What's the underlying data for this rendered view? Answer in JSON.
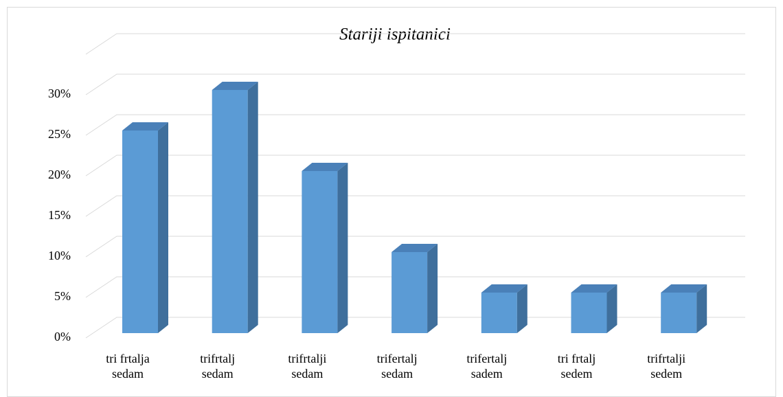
{
  "chart_data": {
    "type": "bar3d",
    "title": "Stariji ispitanici",
    "categories": [
      "tri frtalja\nsedam",
      "trifrtalj\nsedam",
      "trifrtalji\nsedam",
      "trifertalj\nsedam",
      "trifertalj\nsadem",
      "tri frtalj\nsedem",
      "trifrtalji\nsedem"
    ],
    "values": [
      25,
      30,
      20,
      10,
      5,
      5,
      5
    ],
    "color": "#5b9bd5",
    "side_color": "#3f6f9c",
    "top_color": "#4a80b8",
    "ylim": [
      0,
      35
    ],
    "yticks": [
      {
        "value": 0,
        "label": "0%"
      },
      {
        "value": 5,
        "label": "5%"
      },
      {
        "value": 10,
        "label": "10%"
      },
      {
        "value": 15,
        "label": "15%"
      },
      {
        "value": 20,
        "label": "20%"
      },
      {
        "value": 25,
        "label": "25%"
      },
      {
        "value": 30,
        "label": "30%"
      }
    ],
    "grid": true
  }
}
